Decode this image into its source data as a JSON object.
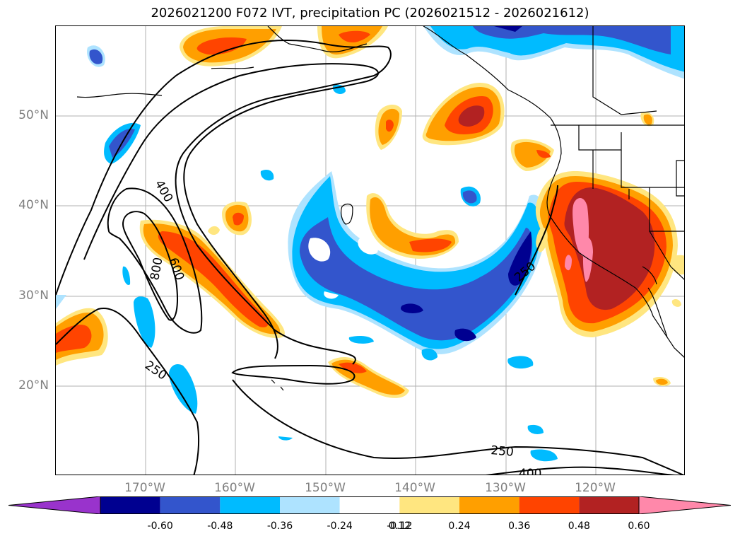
{
  "title": "2026021200 F072 IVT, precipitation PC (2026021512 - 2026021612)",
  "axes": {
    "lat_labels": [
      "50°N",
      "40°N",
      "30°N",
      "20°N"
    ],
    "lon_labels": [
      "170°W",
      "160°W",
      "150°W",
      "140°W",
      "130°W",
      "120°W"
    ]
  },
  "contours": {
    "labels": [
      "400",
      "600",
      "800",
      "250",
      "250",
      "250",
      "400"
    ]
  },
  "colorbar": {
    "ticks": [
      "-0.60",
      "-0.48",
      "-0.36",
      "-0.24",
      "-0.12",
      "0.12",
      "0.24",
      "0.36",
      "0.48",
      "0.60"
    ],
    "colors": [
      "#9933cc",
      "#000090",
      "#3355cc",
      "#00bbff",
      "#aee3ff",
      "#ffffff",
      "#ffe680",
      "#ff9f00",
      "#ff4400",
      "#b22222",
      "#ff88aa"
    ]
  },
  "palette": {
    "land_outline": "#000000",
    "grid": "#b0b0b0",
    "contour": "#000000"
  }
}
